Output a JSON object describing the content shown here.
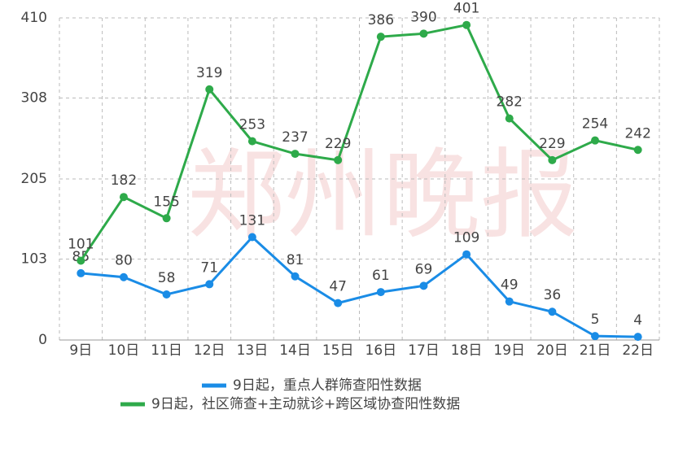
{
  "chart_data": {
    "type": "line",
    "watermark": "郑州晚报",
    "categories": [
      "9日",
      "10日",
      "11日",
      "12日",
      "13日",
      "14日",
      "15日",
      "16日",
      "17日",
      "18日",
      "19日",
      "20日",
      "21日",
      "22日"
    ],
    "series": [
      {
        "name": "9日起，重点人群筛查阳性数据",
        "color": "#1a8ce6",
        "values": [
          85,
          80,
          58,
          71,
          131,
          81,
          47,
          61,
          69,
          109,
          49,
          36,
          5,
          4
        ]
      },
      {
        "name": "9日起，社区筛查+主动就诊+跨区域协查阳性数据",
        "color": "#2eaa4a",
        "values": [
          101,
          182,
          155,
          319,
          253,
          237,
          229,
          386,
          390,
          401,
          282,
          229,
          254,
          242
        ]
      }
    ],
    "ylim": [
      0,
      410
    ],
    "yticks": [
      0,
      103,
      205,
      308,
      410
    ],
    "grid": true
  }
}
